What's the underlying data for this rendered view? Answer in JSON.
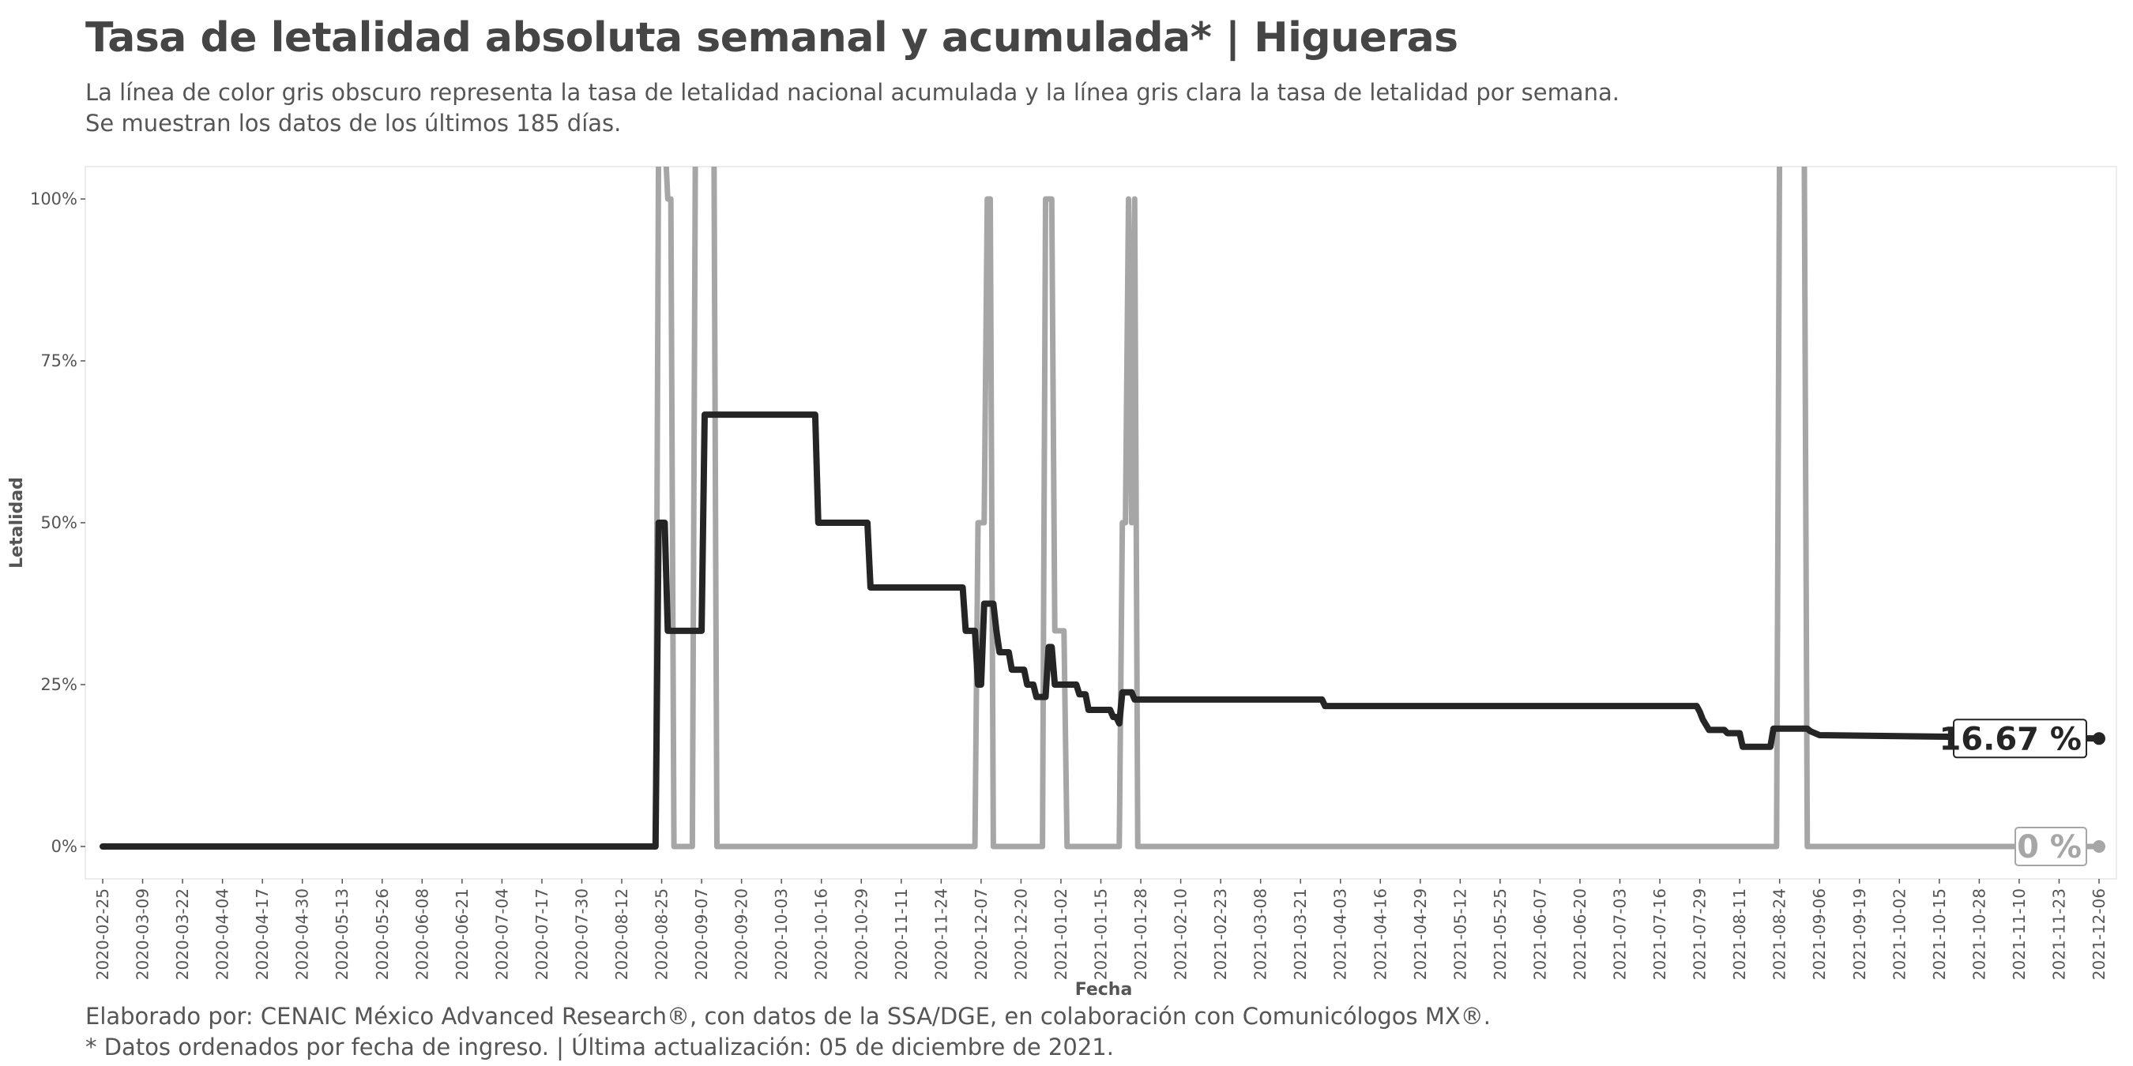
{
  "header": {
    "title": "Tasa de letalidad absoluta semanal y acumulada* | Higueras",
    "subtitle_line1": "La línea de color gris obscuro representa la tasa de letalidad nacional acumulada y la línea gris clara la tasa de letalidad por semana.",
    "subtitle_line2": "Se muestran los datos de los últimos 185 días."
  },
  "footer": {
    "line1": "Elaborado por: CENAIC México Advanced Research®, con datos de la SSA/DGE, en colaboración con Comunicólogos MX®.",
    "line2": "* Datos ordenados por fecha de ingreso. | Última actualización: 05 de diciembre de 2021."
  },
  "chart_data": {
    "type": "line",
    "title": "Tasa de letalidad absoluta semanal y acumulada* | Higueras",
    "xlabel": "Fecha",
    "ylabel": "Letalidad",
    "x_start": "2020-02-25",
    "x_end": "2021-12-06",
    "ylim": [
      -0.05,
      1.05
    ],
    "y_ticks": [
      0,
      0.25,
      0.5,
      0.75,
      1.0
    ],
    "y_tick_labels": [
      "0%",
      "25%",
      "50%",
      "75%",
      "100%"
    ],
    "x_tick_labels": [
      "2020-02-25",
      "2020-03-09",
      "2020-03-22",
      "2020-04-04",
      "2020-04-17",
      "2020-04-30",
      "2020-05-13",
      "2020-05-26",
      "2020-06-08",
      "2020-06-21",
      "2020-07-04",
      "2020-07-17",
      "2020-07-30",
      "2020-08-12",
      "2020-08-25",
      "2020-09-07",
      "2020-09-20",
      "2020-10-03",
      "2020-10-16",
      "2020-10-29",
      "2020-11-11",
      "2020-11-24",
      "2020-12-07",
      "2020-12-20",
      "2021-01-02",
      "2021-01-15",
      "2021-01-28",
      "2021-02-10",
      "2021-02-23",
      "2021-03-08",
      "2021-03-21",
      "2021-04-03",
      "2021-04-16",
      "2021-04-29",
      "2021-05-12",
      "2021-05-25",
      "2021-06-07",
      "2021-06-20",
      "2021-07-03",
      "2021-07-16",
      "2021-07-29",
      "2021-08-11",
      "2021-08-24",
      "2021-09-06",
      "2021-09-19",
      "2021-10-02",
      "2021-10-15",
      "2021-10-28",
      "2021-11-10",
      "2021-11-23",
      "2021-12-06"
    ],
    "grid": false,
    "series": [
      {
        "key": "acumulada",
        "color": "#252525",
        "end_label": "16.67 %",
        "points": [
          [
            "2020-02-25",
            0
          ],
          [
            "2020-08-23",
            0
          ],
          [
            "2020-08-24",
            0.5
          ],
          [
            "2020-08-26",
            0.5
          ],
          [
            "2020-08-27",
            0.333
          ],
          [
            "2020-09-07",
            0.333
          ],
          [
            "2020-09-08",
            0.667
          ],
          [
            "2020-10-14",
            0.667
          ],
          [
            "2020-10-15",
            0.5
          ],
          [
            "2020-10-31",
            0.5
          ],
          [
            "2020-11-01",
            0.4
          ],
          [
            "2020-12-01",
            0.4
          ],
          [
            "2020-12-02",
            0.333
          ],
          [
            "2020-12-05",
            0.333
          ],
          [
            "2020-12-06",
            0.25
          ],
          [
            "2020-12-07",
            0.25
          ],
          [
            "2020-12-08",
            0.375
          ],
          [
            "2020-12-11",
            0.375
          ],
          [
            "2020-12-12",
            0.333
          ],
          [
            "2020-12-13",
            0.3
          ],
          [
            "2020-12-16",
            0.3
          ],
          [
            "2020-12-17",
            0.273
          ],
          [
            "2020-12-21",
            0.273
          ],
          [
            "2020-12-22",
            0.25
          ],
          [
            "2020-12-24",
            0.25
          ],
          [
            "2020-12-25",
            0.231
          ],
          [
            "2020-12-28",
            0.231
          ],
          [
            "2020-12-29",
            0.308
          ],
          [
            "2020-12-30",
            0.308
          ],
          [
            "2020-12-31",
            0.25
          ],
          [
            "2021-01-07",
            0.25
          ],
          [
            "2021-01-08",
            0.235
          ],
          [
            "2021-01-10",
            0.235
          ],
          [
            "2021-01-11",
            0.211
          ],
          [
            "2021-01-18",
            0.211
          ],
          [
            "2021-01-19",
            0.2
          ],
          [
            "2021-01-20",
            0.2
          ],
          [
            "2021-01-21",
            0.19
          ],
          [
            "2021-01-22",
            0.238
          ],
          [
            "2021-01-25",
            0.238
          ],
          [
            "2021-01-26",
            0.227
          ],
          [
            "2021-03-28",
            0.227
          ],
          [
            "2021-03-29",
            0.217
          ],
          [
            "2021-07-28",
            0.217
          ],
          [
            "2021-07-29",
            0.208
          ],
          [
            "2021-07-30",
            0.196
          ],
          [
            "2021-07-31",
            0.188
          ],
          [
            "2021-08-01",
            0.18
          ],
          [
            "2021-08-06",
            0.18
          ],
          [
            "2021-08-07",
            0.175
          ],
          [
            "2021-08-11",
            0.175
          ],
          [
            "2021-08-12",
            0.154
          ],
          [
            "2021-08-21",
            0.154
          ],
          [
            "2021-08-22",
            0.182
          ],
          [
            "2021-09-02",
            0.182
          ],
          [
            "2021-09-03",
            0.178
          ],
          [
            "2021-09-06",
            0.172
          ],
          [
            "2021-12-06",
            0.1667
          ]
        ]
      },
      {
        "key": "semanal",
        "color": "#a6a6a6",
        "end_label": "0 %",
        "points": [
          [
            "2020-02-25",
            0
          ],
          [
            "2020-08-23",
            0
          ],
          [
            "2020-08-24",
            1.1
          ],
          [
            "2020-08-26",
            1.1
          ],
          [
            "2020-08-27",
            1.0
          ],
          [
            "2020-08-28",
            1.0
          ],
          [
            "2020-08-29",
            0
          ],
          [
            "2020-09-04",
            0
          ],
          [
            "2020-09-05",
            1.1
          ],
          [
            "2020-09-11",
            1.1
          ],
          [
            "2020-09-12",
            0
          ],
          [
            "2020-12-05",
            0
          ],
          [
            "2020-12-06",
            0.5
          ],
          [
            "2020-12-08",
            0.5
          ],
          [
            "2020-12-09",
            1.0
          ],
          [
            "2020-12-10",
            1.0
          ],
          [
            "2020-12-11",
            0
          ],
          [
            "2020-12-27",
            0
          ],
          [
            "2020-12-28",
            1.0
          ],
          [
            "2020-12-30",
            1.0
          ],
          [
            "2020-12-31",
            0.333
          ],
          [
            "2021-01-03",
            0.333
          ],
          [
            "2021-01-04",
            0
          ],
          [
            "2021-01-21",
            0
          ],
          [
            "2021-01-22",
            0.5
          ],
          [
            "2021-01-23",
            0.5
          ],
          [
            "2021-01-24",
            1.0
          ],
          [
            "2021-01-25",
            0.5
          ],
          [
            "2021-01-26",
            1.0
          ],
          [
            "2021-01-27",
            0
          ],
          [
            "2021-08-23",
            0
          ],
          [
            "2021-08-24",
            1.1
          ],
          [
            "2021-09-01",
            1.1
          ],
          [
            "2021-09-02",
            0
          ],
          [
            "2021-12-06",
            0
          ]
        ]
      }
    ]
  }
}
